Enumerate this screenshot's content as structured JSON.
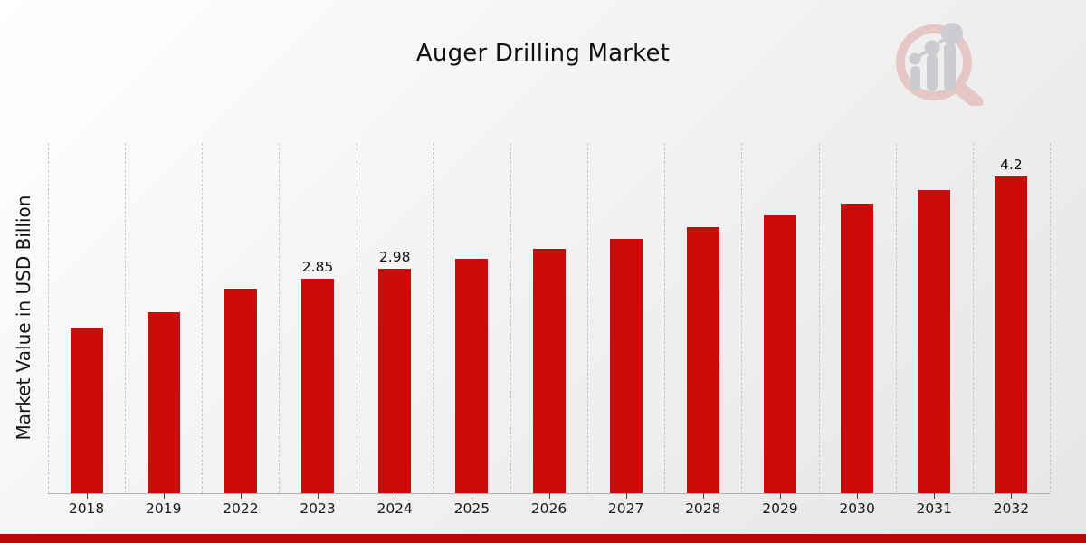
{
  "title": "Auger Drilling Market",
  "y_axis_label": "Market Value in USD Billion",
  "watermark_icon": "magnifier-bar-chart-logo",
  "colors": {
    "bar": "#cb0a0a",
    "bottom_band": "#bb0606",
    "gridline": "#c9c9c9",
    "axis_line": "#b0b0b0",
    "watermark_ring": "#e7c6c6",
    "watermark_gray": "#cbccd0"
  },
  "chart_data": {
    "type": "bar",
    "title": "Auger Drilling Market",
    "xlabel": "",
    "ylabel": "Market Value in USD Billion",
    "categories": [
      "2018",
      "2019",
      "2022",
      "2023",
      "2024",
      "2025",
      "2026",
      "2027",
      "2028",
      "2029",
      "2030",
      "2031",
      "2032"
    ],
    "values": [
      2.2,
      2.4,
      2.72,
      2.85,
      2.98,
      3.11,
      3.24,
      3.38,
      3.53,
      3.69,
      3.85,
      4.02,
      4.2
    ],
    "point_labels": [
      "",
      "",
      "",
      "2.85",
      "2.98",
      "",
      "",
      "",
      "",
      "",
      "",
      "",
      "4.2"
    ],
    "ylim": [
      0,
      4.65
    ],
    "grid": "vertical-dashed",
    "legend": "none",
    "bar_color": "#cb0a0a"
  }
}
